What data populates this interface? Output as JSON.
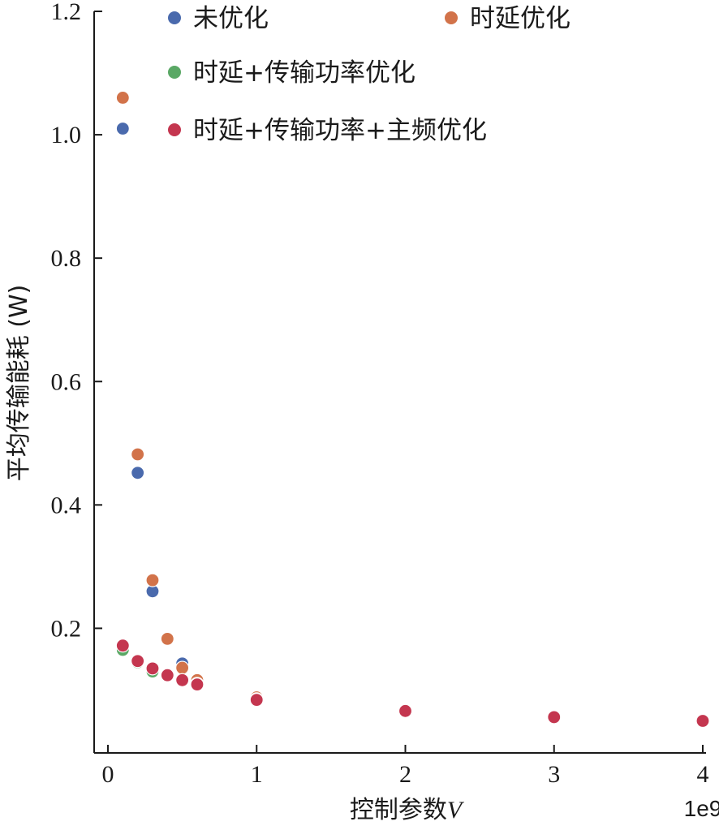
{
  "chart_data": {
    "type": "scatter",
    "xlabel": "控制参数",
    "xlabel_var": "V",
    "ylabel": "平均传输能耗 (W)",
    "x_exponent_label": "1e9",
    "xlim": [
      -0.1,
      4.0
    ],
    "ylim": [
      0.0,
      1.2
    ],
    "x_ticks": [
      0,
      1,
      2,
      3,
      4
    ],
    "x_tick_labels": [
      "0",
      "1",
      "2",
      "3",
      "4"
    ],
    "y_ticks": [
      0.2,
      0.4,
      0.6,
      0.8,
      1.0,
      1.2
    ],
    "y_tick_labels": [
      "0.2",
      "0.4",
      "0.6",
      "0.8",
      "1.0",
      "1.2"
    ],
    "grid": false,
    "legend_placement": "top",
    "series": [
      {
        "name": "未优化",
        "color": "#4a6aad",
        "x": [
          0.1,
          0.2,
          0.3,
          0.5,
          1,
          2,
          3,
          4
        ],
        "y": [
          1.01,
          0.452,
          0.26,
          0.143,
          0.088,
          0.066,
          0.055,
          0.05
        ]
      },
      {
        "name": "时延优化",
        "color": "#d2734a",
        "x": [
          0.1,
          0.2,
          0.3,
          0.4,
          0.5,
          0.6,
          1,
          2,
          3,
          4
        ],
        "y": [
          1.06,
          0.482,
          0.278,
          0.183,
          0.136,
          0.116,
          0.088,
          0.066,
          0.056,
          0.05
        ]
      },
      {
        "name": "时延+传输功率优化",
        "color": "#5aa865",
        "x": [
          0.1,
          0.2,
          0.3,
          0.4,
          0.5,
          0.6,
          1,
          2,
          3,
          4
        ],
        "y": [
          0.165,
          0.145,
          0.13,
          0.125,
          0.116,
          0.11,
          0.085,
          0.066,
          0.055,
          0.05
        ]
      },
      {
        "name": "时延+传输功率+主频优化",
        "color": "#c4364f",
        "x": [
          0.1,
          0.2,
          0.3,
          0.4,
          0.5,
          0.6,
          1,
          2,
          3,
          4
        ],
        "y": [
          0.172,
          0.147,
          0.135,
          0.124,
          0.116,
          0.109,
          0.084,
          0.066,
          0.056,
          0.05
        ]
      }
    ]
  }
}
